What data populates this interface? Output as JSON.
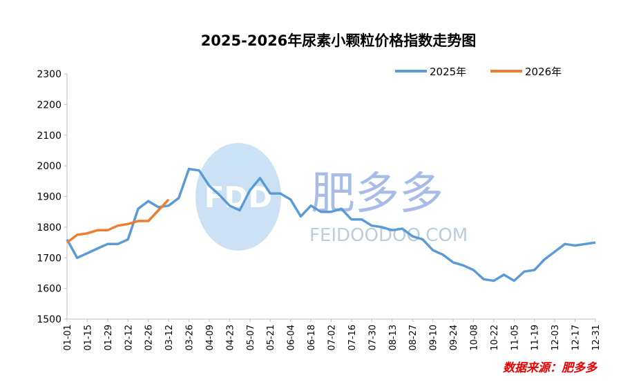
{
  "chart_data": {
    "type": "line",
    "title": "2025-2026年尿素小颗粒价格指数走势图",
    "categories": [
      "01-01",
      null,
      "01-15",
      null,
      "01-29",
      null,
      "02-12",
      null,
      "02-26",
      null,
      "03-12",
      null,
      "03-26",
      null,
      "04-09",
      null,
      "04-23",
      null,
      "05-07",
      null,
      "05-21",
      null,
      "06-04",
      null,
      "06-18",
      null,
      "07-02",
      null,
      "07-16",
      null,
      "07-30",
      null,
      "08-13",
      null,
      "08-27",
      null,
      "09-10",
      null,
      "09-24",
      null,
      "10-08",
      null,
      "10-22",
      null,
      "11-05",
      null,
      "11-19",
      null,
      "12-03",
      null,
      "12-17",
      null,
      "12-31"
    ],
    "series": [
      {
        "name": "2025年",
        "color": "#5b9bd5",
        "values": [
          1760,
          1700,
          1715,
          1730,
          1745,
          1745,
          1760,
          1860,
          1885,
          1865,
          1870,
          1895,
          1990,
          1985,
          1935,
          1905,
          1870,
          1855,
          1920,
          1960,
          1910,
          1910,
          1890,
          1835,
          1870,
          1850,
          1850,
          1860,
          1825,
          1825,
          1805,
          1800,
          1790,
          1795,
          1770,
          1760,
          1725,
          1710,
          1685,
          1675,
          1660,
          1630,
          1625,
          1645,
          1625,
          1655,
          1660,
          1695,
          1720,
          1745,
          1740,
          1745,
          1750
        ]
      },
      {
        "name": "2026年",
        "color": "#ed7d31",
        "values": [
          1750,
          1775,
          1780,
          1790,
          1790,
          1805,
          1810,
          1820,
          1820,
          1855,
          1890,
          null,
          null,
          null,
          null,
          null,
          null,
          null,
          null,
          null,
          null,
          null,
          null,
          null,
          null,
          null,
          null,
          null,
          null,
          null,
          null,
          null,
          null,
          null,
          null,
          null,
          null,
          null,
          null,
          null,
          null,
          null,
          null,
          null,
          null,
          null,
          null,
          null,
          null,
          null,
          null,
          null,
          null
        ]
      }
    ],
    "ylim": [
      1500,
      2300
    ],
    "yticks": [
      1500,
      1600,
      1700,
      1800,
      1900,
      2000,
      2100,
      2200,
      2300
    ],
    "legend": "top-right",
    "watermark": {
      "name": "肥多多",
      "site": "FEIDOODOO.COM"
    },
    "source": "数据来源：肥多多"
  }
}
